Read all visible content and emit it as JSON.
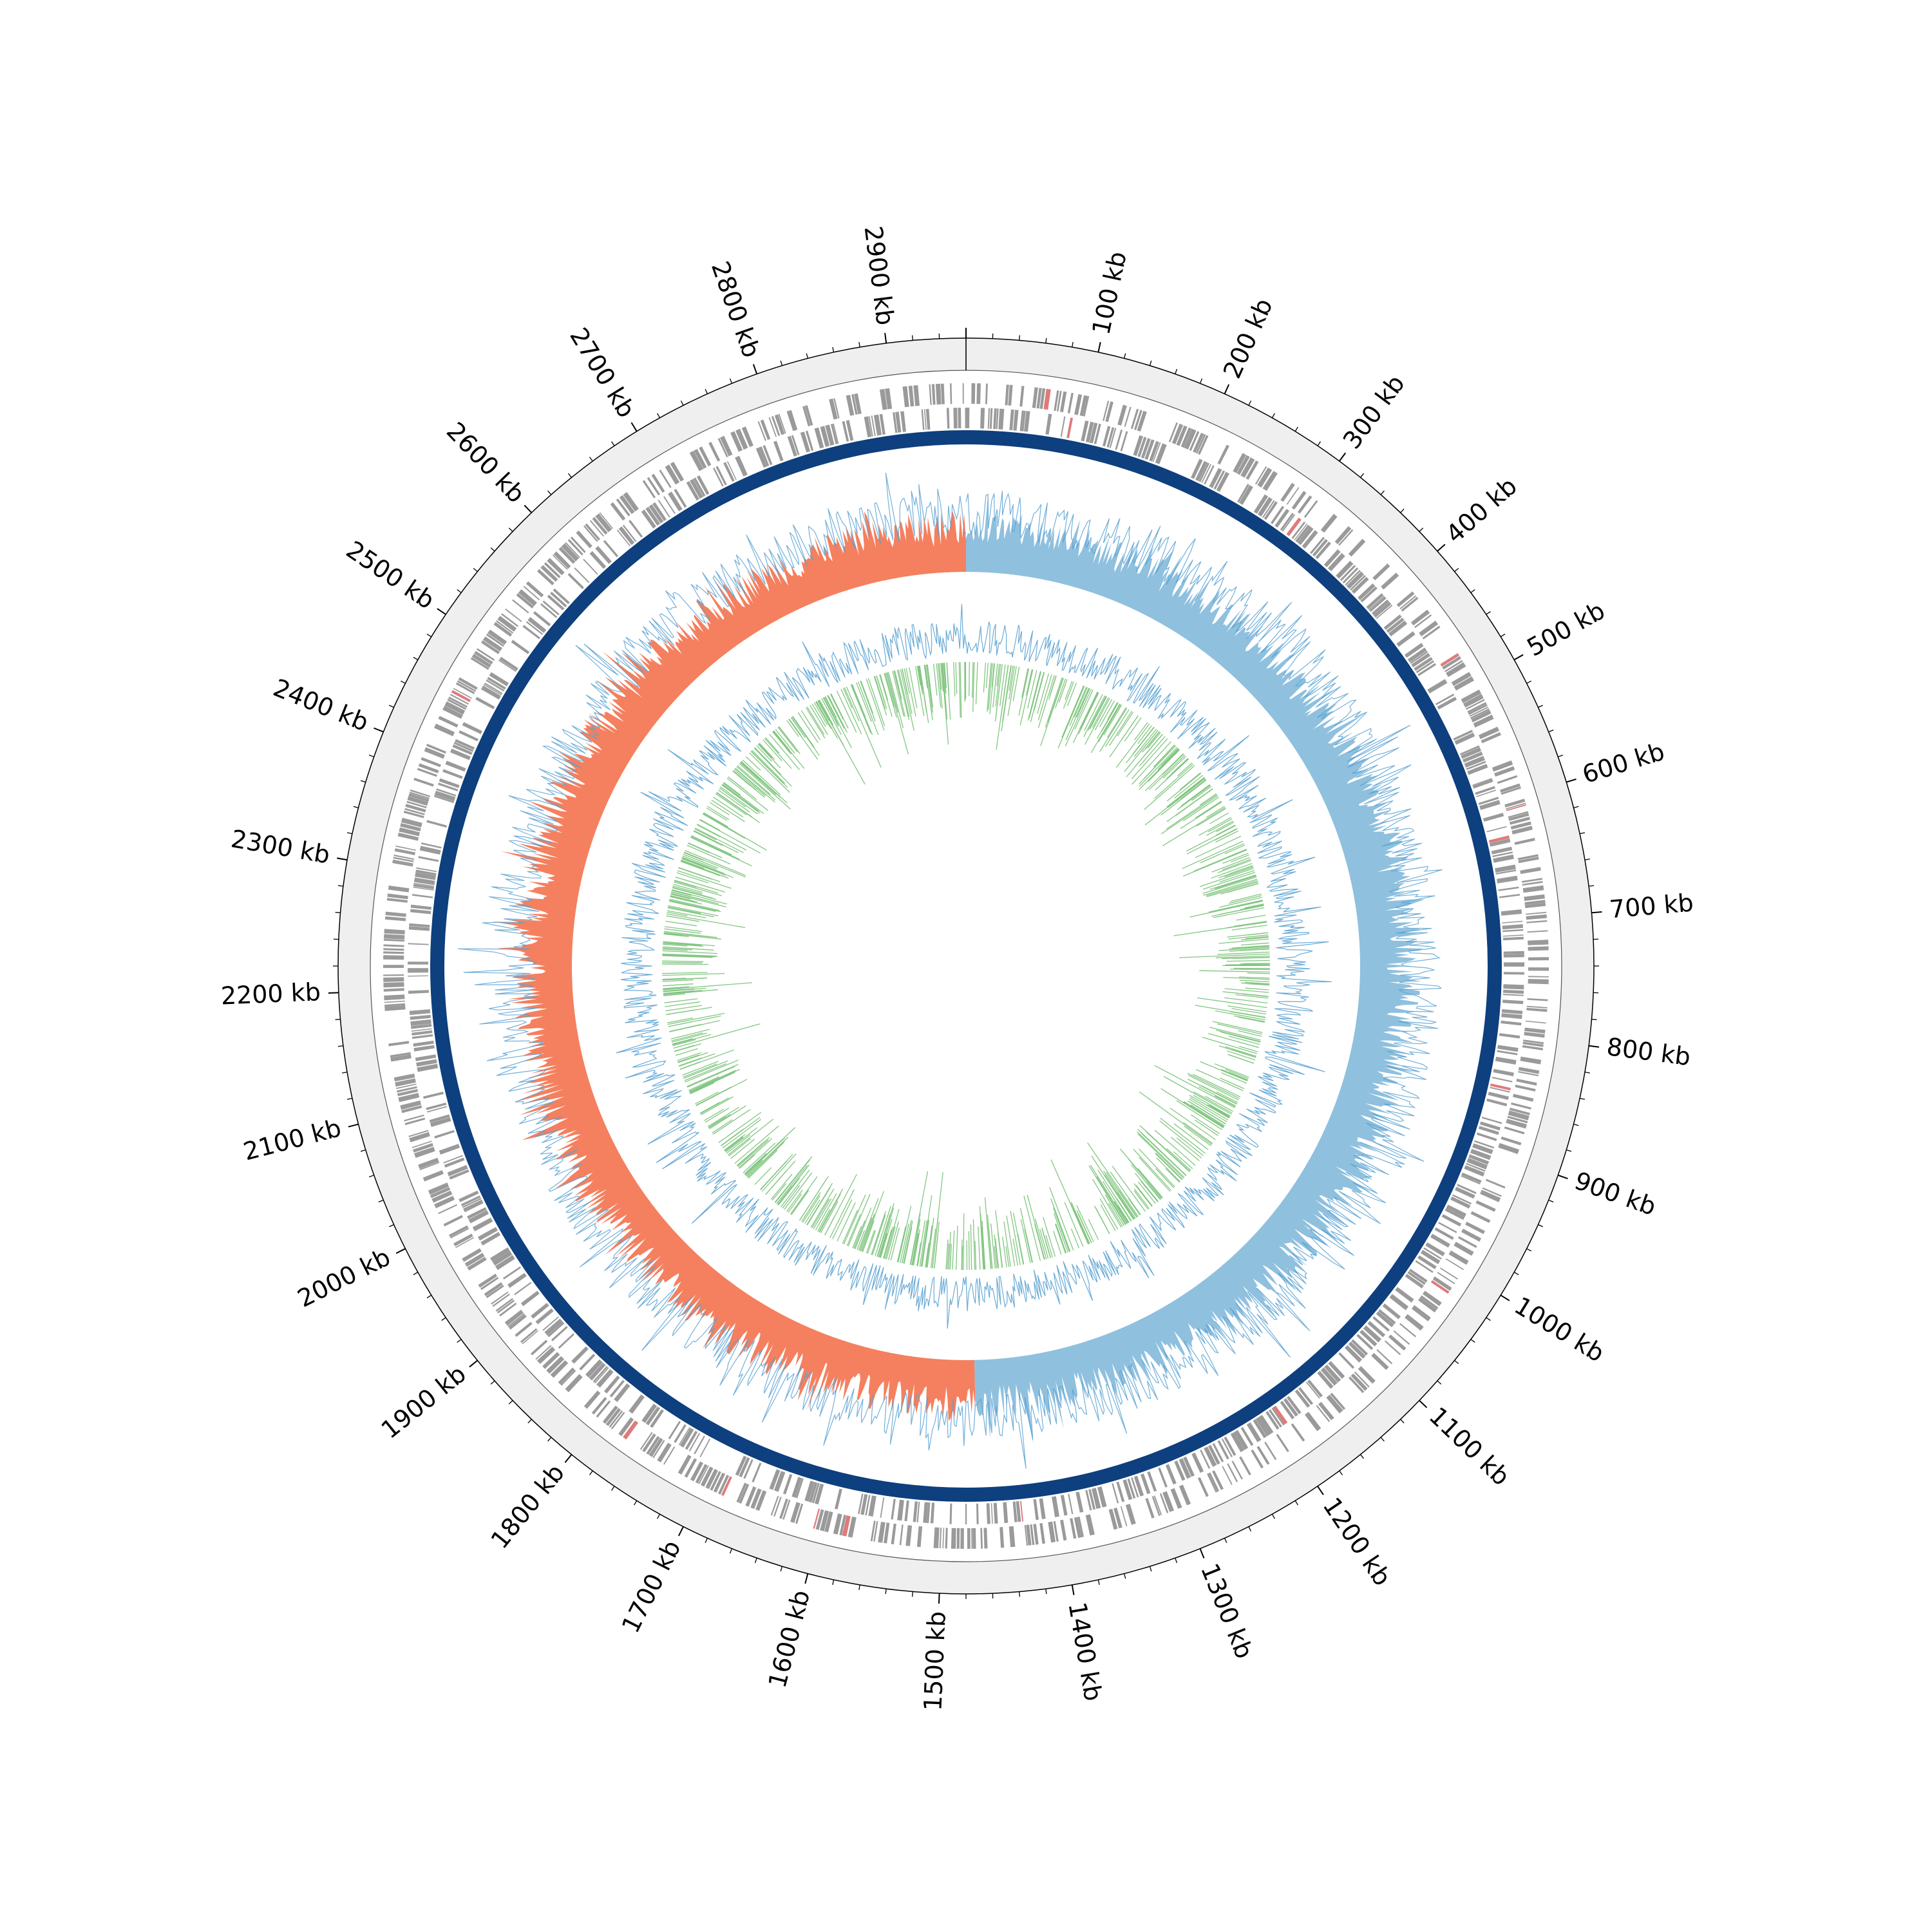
{
  "chart_data": {
    "type": "circular_genome_map",
    "genome_length_kb": 2960,
    "tick_labels_kb": [
      100,
      200,
      300,
      400,
      500,
      600,
      700,
      800,
      900,
      1000,
      1100,
      1200,
      1300,
      1400,
      1500,
      1600,
      1700,
      1800,
      1900,
      2000,
      2100,
      2200,
      2300,
      2400,
      2500,
      2600,
      2700,
      2800,
      2900
    ],
    "tick_label_unit": "kb",
    "minor_tick_step_kb": 20,
    "origin_kb": 0,
    "gc_skew_sign_change_kb": [
      0,
      1470
    ],
    "tracks": [
      {
        "name": "",
        "kind": "outer_ring_band",
        "color": "#efefef"
      },
      {
        "name": "",
        "kind": "features_forward_reverse",
        "color": "#9a9a9a",
        "highlight_color": "#e07a7a"
      },
      {
        "name": "",
        "kind": "solid_ring",
        "color": "#0e3f7e"
      },
      {
        "name": "",
        "kind": "gc_skew",
        "positive_color": "#8fc0de",
        "negative_color": "#f4805f",
        "line_color": "#5aa2d2"
      },
      {
        "name": "",
        "kind": "gc_content",
        "above_color": "#5aa2d2",
        "below_color": "#76c074"
      }
    ]
  },
  "colors": {
    "background": "#ffffff",
    "ring_band": "#efefef",
    "feature": "#9a9a9a",
    "solid_ring": "#0e3f7e",
    "skew_pos": "#8fc0de",
    "skew_neg": "#f4805f",
    "gc_blue": "#5aa2d2",
    "gc_green": "#76c074",
    "axis": "#000000"
  }
}
